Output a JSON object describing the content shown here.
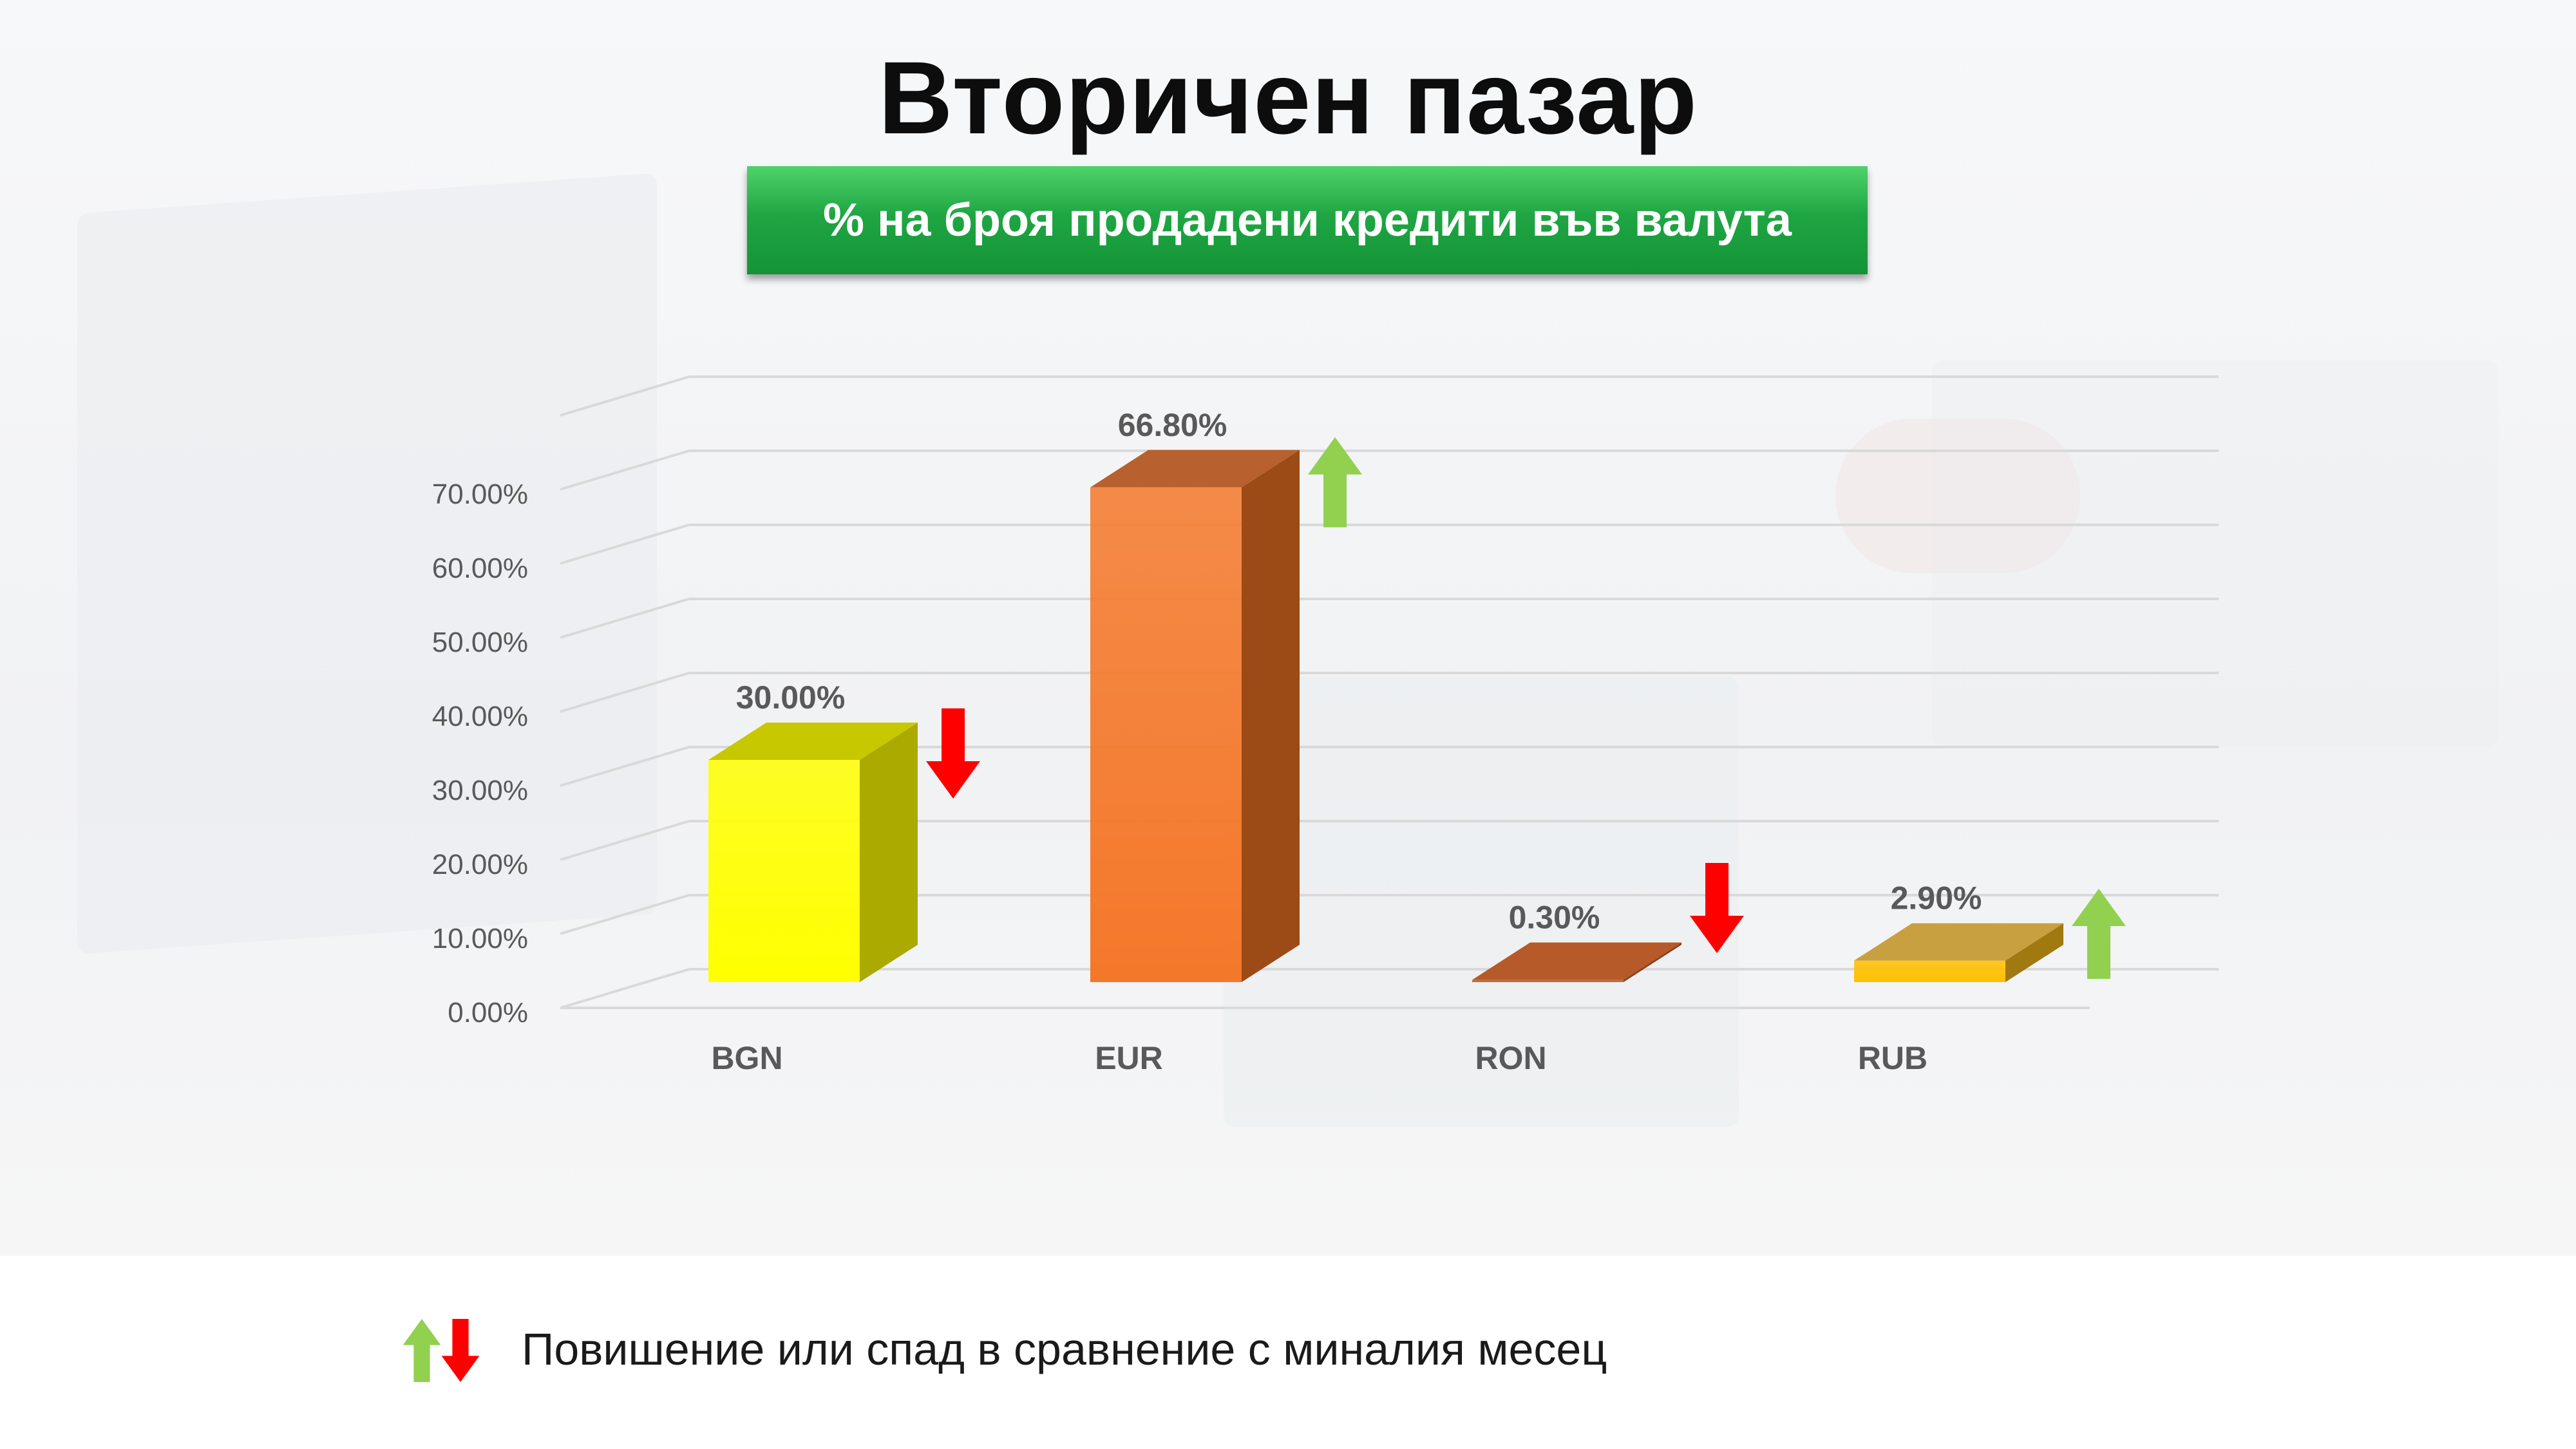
{
  "title": "Вторичен пазар",
  "subtitle": "% на броя продадени кредити във валута",
  "legend": {
    "text": "Повишение или спад в сравнение с миналия месец",
    "up_color": "#92d050",
    "down_color": "#ff0000"
  },
  "chart_data": {
    "type": "bar",
    "categories": [
      "BGN",
      "EUR",
      "RON",
      "RUB"
    ],
    "values": [
      30.0,
      66.8,
      0.3,
      2.9
    ],
    "value_labels": [
      "30.00%",
      "66.80%",
      "0.30%",
      "2.90%"
    ],
    "trend": [
      "down",
      "up",
      "down",
      "up"
    ],
    "yticks": [
      "0.00%",
      "10.00%",
      "20.00%",
      "30.00%",
      "40.00%",
      "50.00%",
      "60.00%",
      "70.00%"
    ],
    "ylim": [
      0,
      70
    ],
    "grid": true,
    "bar_colors": [
      {
        "front": "#ffff00",
        "side": "#aaaa00",
        "top": "#c8c800"
      },
      {
        "front": "#f4782a",
        "side": "#9c4a16",
        "top": "#b8602e"
      },
      {
        "front": "#c0602a",
        "side": "#8a4018",
        "top": "#b55a28"
      },
      {
        "front": "#ffc000",
        "side": "#a07a10",
        "top": "#c9a040"
      }
    ]
  }
}
